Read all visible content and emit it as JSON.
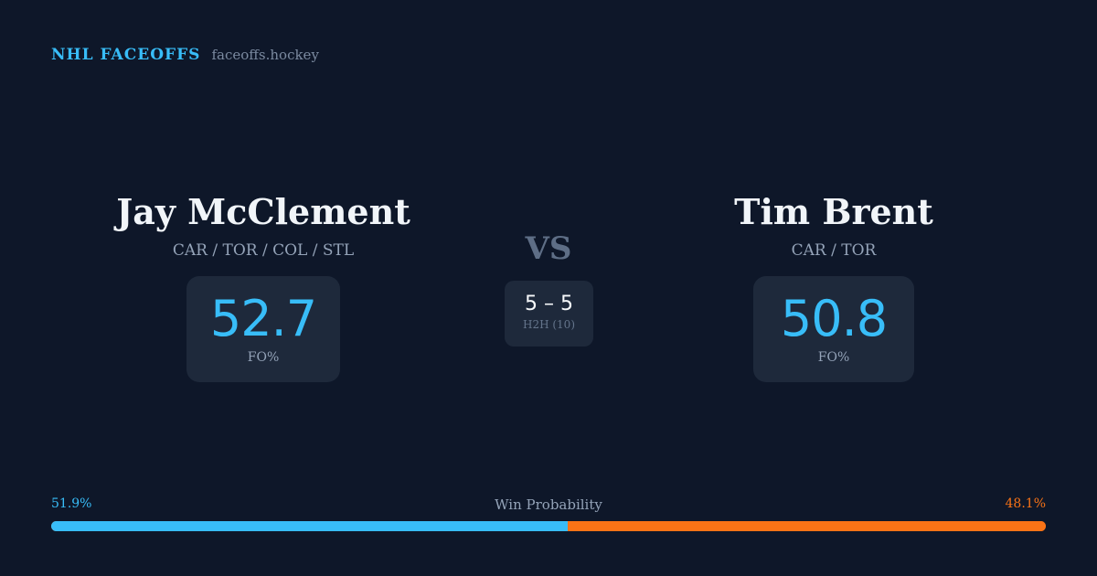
{
  "brand": {
    "name": "NHL FACEOFFS",
    "url": "faceoffs.hockey"
  },
  "player_left": {
    "name": "Jay McClement",
    "teams": "CAR / TOR / COL / STL",
    "fo_pct": "52.7",
    "fo_label": "FO%"
  },
  "player_right": {
    "name": "Tim Brent",
    "teams": "CAR / TOR",
    "fo_pct": "50.8",
    "fo_label": "FO%"
  },
  "versus": {
    "label": "VS",
    "score": "5 – 5",
    "h2h": "H2H (10)"
  },
  "win_probability": {
    "title": "Win Probability",
    "left_label": "51.9%",
    "right_label": "48.1%",
    "left_value": 51.9,
    "right_value": 48.1,
    "left_color": "#38bdf8",
    "right_color": "#f97316"
  }
}
